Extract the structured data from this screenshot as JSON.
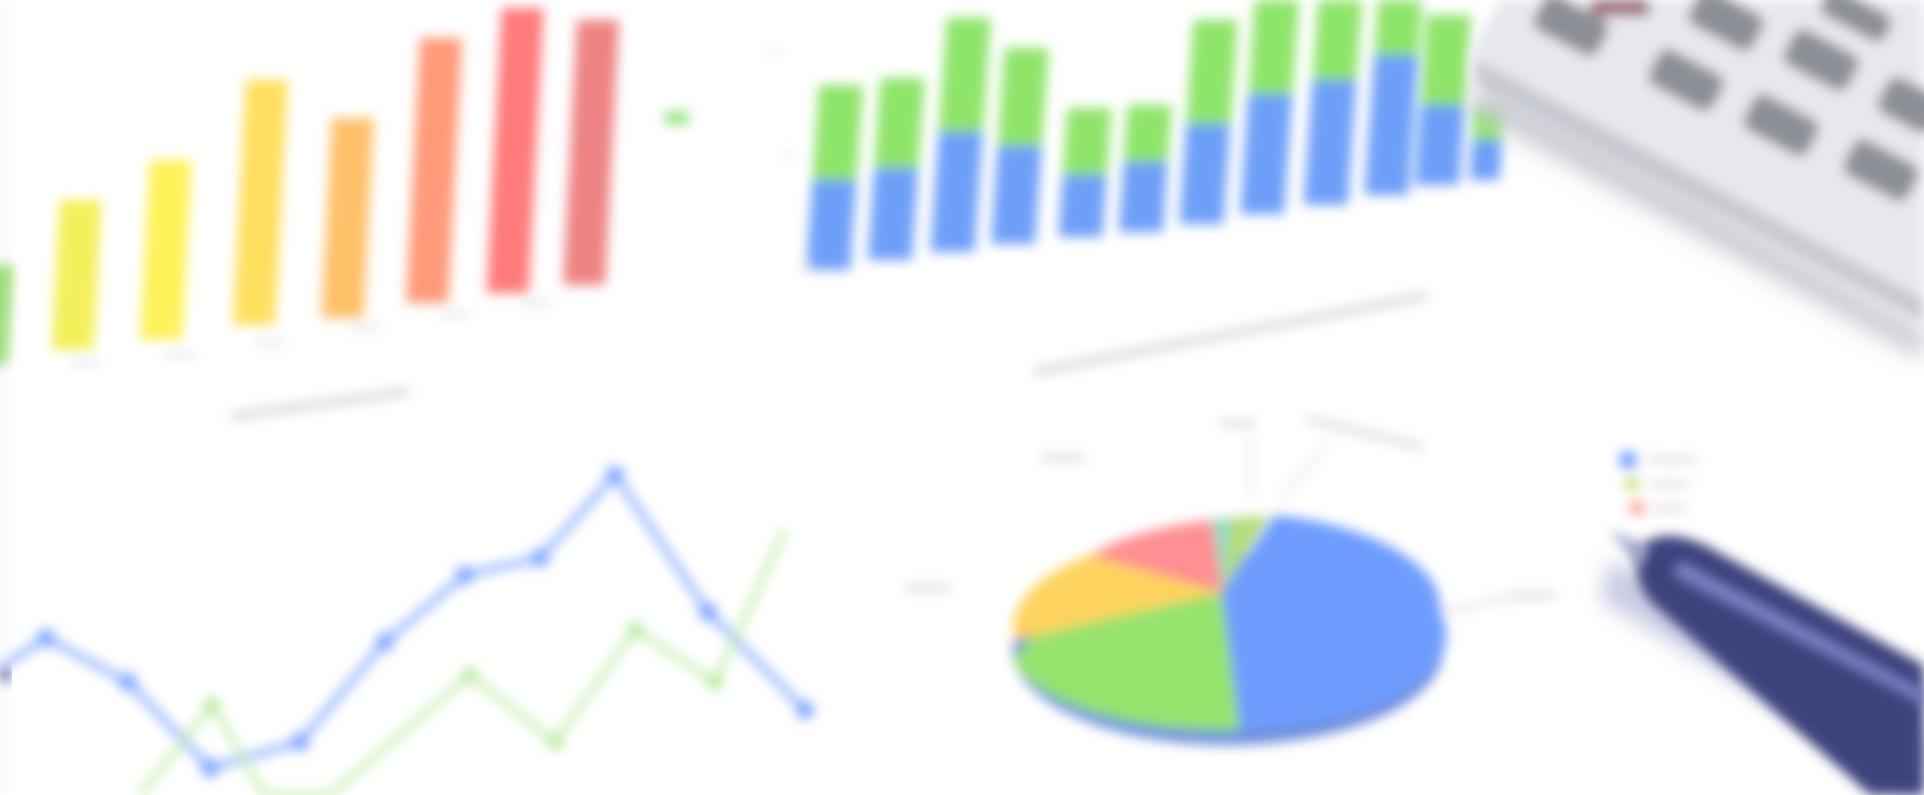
{
  "photo": {
    "subject": "blurred-financial-charts-with-calculator-and-pen",
    "background": "#ffffff",
    "colors": {
      "green": "#84e25f",
      "yellow": "#fff25a",
      "gold": "#ffd65a",
      "orange": "#ffb26a",
      "salmon": "#ff8c7a",
      "red": "#ff6b6b",
      "blue": "#6c9cff",
      "calculator_body": "#e7e8ee",
      "calculator_key": "#8d8f96",
      "pen": "#3a3f7a"
    },
    "icons": [
      "calculator-icon",
      "pen-icon"
    ]
  }
}
